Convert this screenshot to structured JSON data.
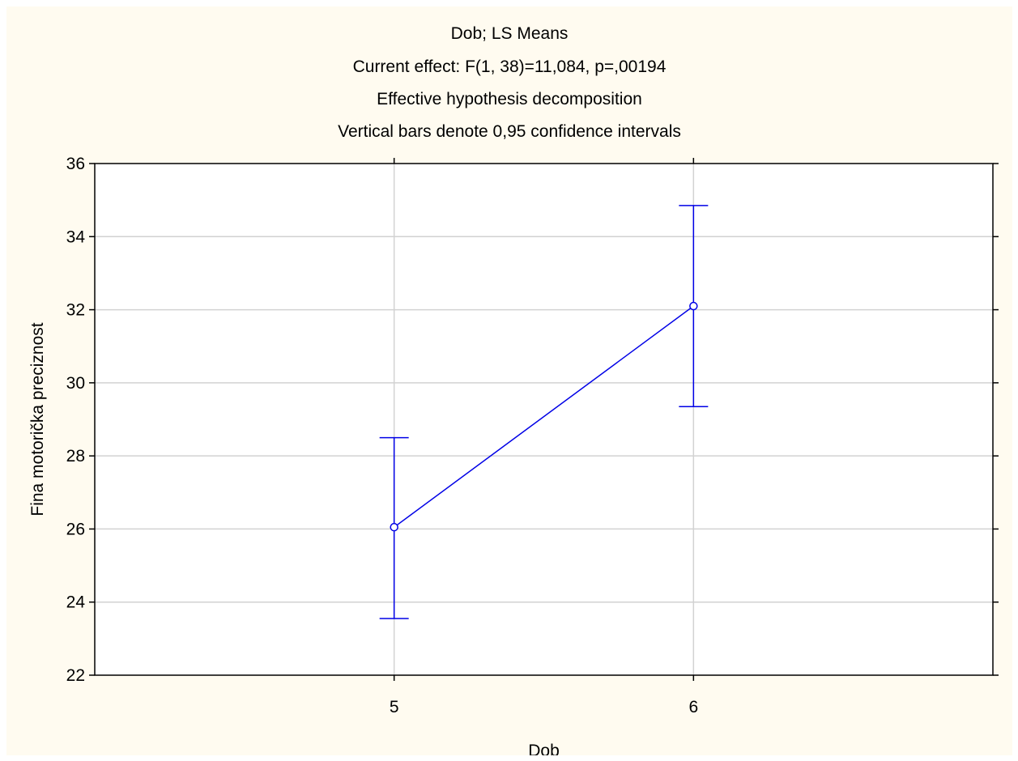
{
  "chart_data": {
    "type": "line",
    "title": [
      "Dob; LS Means",
      "Current effect: F(1, 38)=11,084, p=,00194",
      "Effective hypothesis decomposition",
      "Vertical bars denote 0,95 confidence intervals"
    ],
    "xlabel": "Dob",
    "ylabel": "Fina motorička preciznost",
    "categories": [
      "5",
      "6"
    ],
    "series": [
      {
        "values": [
          26.05,
          32.1
        ],
        "ci_lower": [
          23.55,
          29.35
        ],
        "ci_upper": [
          28.5,
          34.85
        ]
      }
    ],
    "ylim": [
      22,
      36
    ],
    "yticks": [
      22,
      24,
      26,
      28,
      30,
      32,
      34,
      36
    ],
    "grid": true,
    "legend": "none",
    "colors": {
      "series": "#0000e6",
      "grid": "#d2d2d2",
      "axes": "#000000",
      "background": "#fffbf0",
      "plot_area": "#ffffff"
    }
  }
}
